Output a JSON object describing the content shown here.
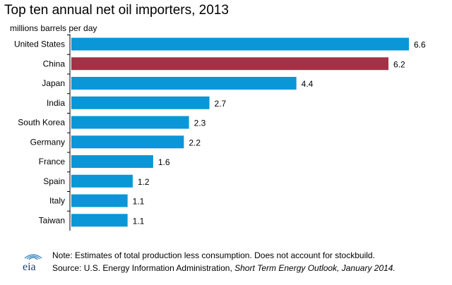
{
  "chart_data": {
    "type": "bar",
    "orientation": "horizontal",
    "title": "Top ten annual net oil importers, 2013",
    "subtitle": "millions barrels per day",
    "categories": [
      "United States",
      "China",
      "Japan",
      "India",
      "South Korea",
      "Germany",
      "France",
      "Spain",
      "Italy",
      "Taiwan"
    ],
    "values": [
      6.6,
      6.2,
      4.4,
      2.7,
      2.3,
      2.2,
      1.6,
      1.2,
      1.1,
      1.1
    ],
    "data_labels": [
      "6.6",
      "6.2",
      "4.4",
      "2.7",
      "2.3",
      "2.2",
      "1.6",
      "1.2",
      "1.1",
      "1.1"
    ],
    "xlim": [
      0,
      6.6
    ],
    "grid": false,
    "colors": {
      "default": "#0b96d8",
      "highlight": "#a33246",
      "highlight_category": "China"
    }
  },
  "footer": {
    "note": "Note: Estimates of total production less consumption. Does not account for stockbuild.",
    "source_prefix": "Source: U.S. Energy Information  Administration, ",
    "source_title": "Short Term Energy Outlook, January 2014.",
    "logo_text": "eia"
  }
}
